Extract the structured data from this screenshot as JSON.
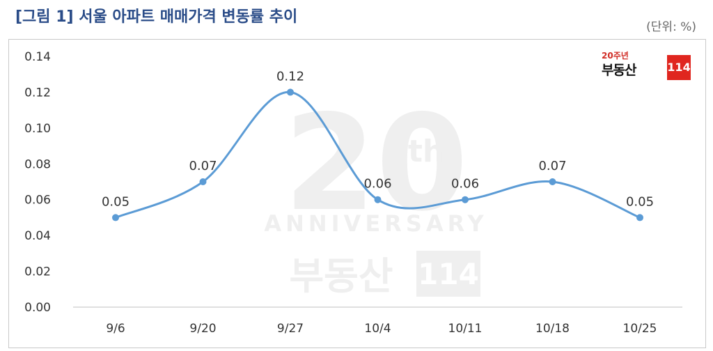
{
  "header": {
    "title": "[그림 1] 서울 아파트 매매가격 변동률 추이",
    "unit": "(단위: %)"
  },
  "logo": {
    "small": "20주년",
    "brand": "부동산",
    "num": "114"
  },
  "watermark": {
    "big": "20",
    "th": "th",
    "word": "ANNIVERSARY",
    "brand": "부동산",
    "num": "114"
  },
  "colors": {
    "title": "#2a4c88",
    "line": "#5b9bd5",
    "logo_red": "#e0261f"
  },
  "chart_data": {
    "type": "line",
    "categories": [
      "9/6",
      "9/20",
      "9/27",
      "10/4",
      "10/11",
      "10/18",
      "10/25"
    ],
    "values": [
      0.05,
      0.07,
      0.12,
      0.06,
      0.06,
      0.07,
      0.05
    ],
    "data_labels": [
      "0.05",
      "0.07",
      "0.12",
      "0.06",
      "0.06",
      "0.07",
      "0.05"
    ],
    "yticks": [
      "0.00",
      "0.02",
      "0.04",
      "0.06",
      "0.08",
      "0.10",
      "0.12",
      "0.14"
    ],
    "ylim": [
      0,
      0.14
    ],
    "smooth": true,
    "grid": false,
    "legend": "none"
  }
}
